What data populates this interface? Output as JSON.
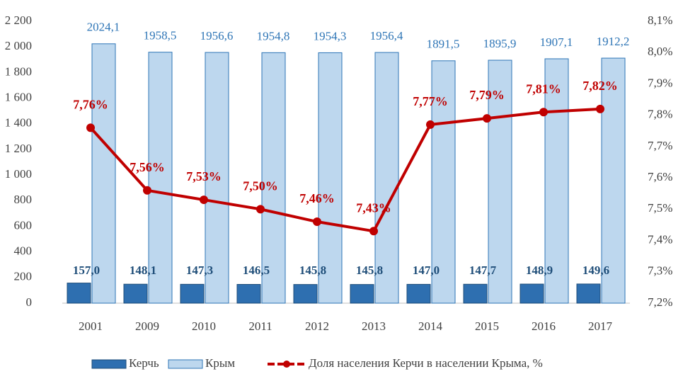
{
  "chart_data": {
    "type": "bar",
    "categories": [
      "2001",
      "2009",
      "2010",
      "2011",
      "2012",
      "2013",
      "2014",
      "2015",
      "2016",
      "2017"
    ],
    "series": [
      {
        "name": "Керчь",
        "color": "#2e6fb0",
        "values": [
          157.0,
          148.1,
          147.3,
          146.5,
          145.8,
          145.8,
          147.0,
          147.7,
          148.9,
          149.6
        ],
        "value_labels": [
          "157,0",
          "148,1",
          "147,3",
          "146,5",
          "145,8",
          "145,8",
          "147,0",
          "147,7",
          "148,9",
          "149,6"
        ]
      },
      {
        "name": "Крым",
        "color": "#bdd7ee",
        "values": [
          2024.1,
          1958.5,
          1956.6,
          1954.8,
          1954.3,
          1956.4,
          1891.5,
          1895.9,
          1907.1,
          1912.2
        ],
        "value_labels": [
          "2024,1",
          "1958,5",
          "1956,6",
          "1954,8",
          "1954,3",
          "1956,4",
          "1891,5",
          "1895,9",
          "1907,1",
          "1912,2"
        ]
      },
      {
        "name": "Доля населения Керчи в населении Крыма, %",
        "color": "#c00000",
        "type": "line",
        "axis": "y2",
        "values": [
          7.76,
          7.56,
          7.53,
          7.5,
          7.46,
          7.43,
          7.77,
          7.79,
          7.81,
          7.82
        ],
        "value_labels": [
          "7,76%",
          "7,56%",
          "7,53%",
          "7,50%",
          "7,46%",
          "7,43%",
          "7,77%",
          "7,79%",
          "7,81%",
          "7,82%"
        ]
      }
    ],
    "ylim": [
      0,
      2200
    ],
    "yticks": [
      {
        "value": 0,
        "label": "0"
      },
      {
        "value": 200,
        "label": "200"
      },
      {
        "value": 400,
        "label": "400"
      },
      {
        "value": 600,
        "label": "600"
      },
      {
        "value": 800,
        "label": "800"
      },
      {
        "value": 1000,
        "label": "1 000"
      },
      {
        "value": 1200,
        "label": "1 200"
      },
      {
        "value": 1400,
        "label": "1 400"
      },
      {
        "value": 1600,
        "label": "1 600"
      },
      {
        "value": 1800,
        "label": "1 800"
      },
      {
        "value": 2000,
        "label": "2 000"
      },
      {
        "value": 2200,
        "label": "2 200"
      }
    ],
    "y2lim": [
      7.2,
      8.1
    ],
    "y2ticks": [
      {
        "value": 7.2,
        "label": "7,2%"
      },
      {
        "value": 7.3,
        "label": "7,3%"
      },
      {
        "value": 7.4,
        "label": "7,4%"
      },
      {
        "value": 7.5,
        "label": "7,5%"
      },
      {
        "value": 7.6,
        "label": "7,6%"
      },
      {
        "value": 7.7,
        "label": "7,7%"
      },
      {
        "value": 7.8,
        "label": "7,8%"
      },
      {
        "value": 7.9,
        "label": "7,9%"
      },
      {
        "value": 8.0,
        "label": "8,0%"
      },
      {
        "value": 8.1,
        "label": "8,1%"
      }
    ],
    "grid": false,
    "legend": "bottom"
  }
}
